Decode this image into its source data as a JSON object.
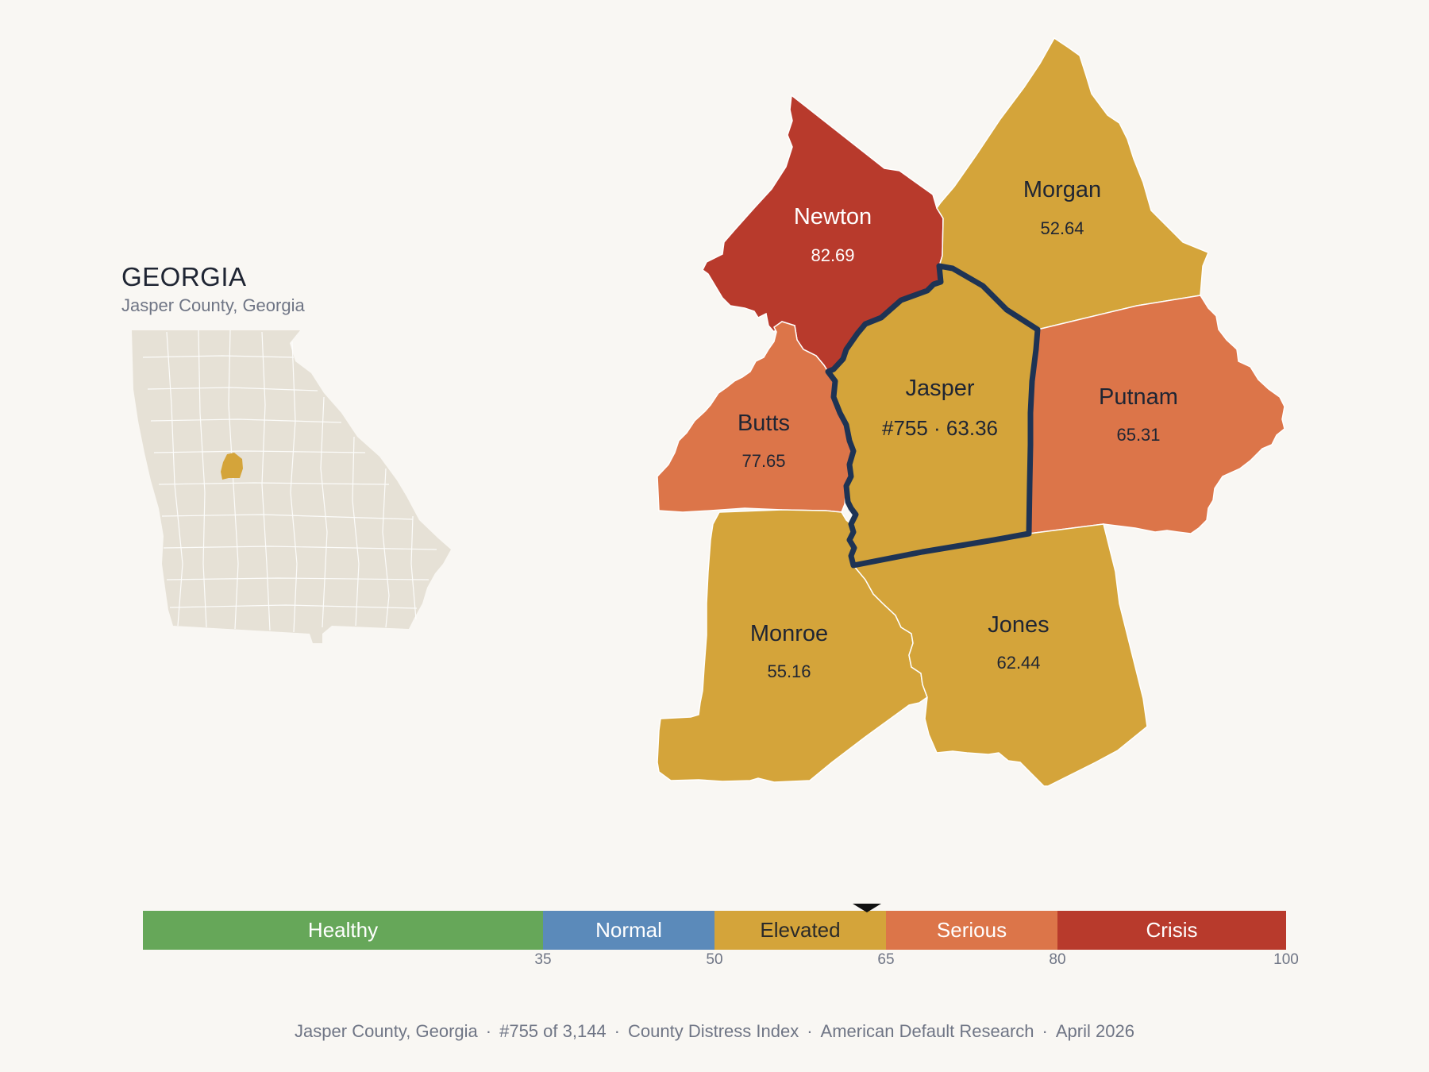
{
  "inset": {
    "state_title": "GEORGIA",
    "subtitle": "Jasper County, Georgia",
    "state_fill": "#e6e1d6",
    "highlight_fill": "#d4a43a"
  },
  "map": {
    "counties": [
      {
        "id": "newton",
        "name": "Newton",
        "value": "82.69",
        "category": "Crisis",
        "color": "#b83a2c"
      },
      {
        "id": "morgan",
        "name": "Morgan",
        "value": "52.64",
        "category": "Elevated",
        "color": "#d4a43a"
      },
      {
        "id": "butts",
        "name": "Butts",
        "value": "77.65",
        "category": "Serious",
        "color": "#dc7549"
      },
      {
        "id": "jasper",
        "name": "Jasper",
        "value": "#755 · 63.36",
        "category": "Elevated",
        "color": "#d4a43a",
        "selected": true
      },
      {
        "id": "putnam",
        "name": "Putnam",
        "value": "65.31",
        "category": "Serious",
        "color": "#dc7549"
      },
      {
        "id": "monroe",
        "name": "Monroe",
        "value": "55.16",
        "category": "Elevated",
        "color": "#d4a43a"
      },
      {
        "id": "jones",
        "name": "Jones",
        "value": "62.44",
        "category": "Elevated",
        "color": "#d4a43a"
      }
    ],
    "selected_outline_color": "#1e3354"
  },
  "scale": {
    "segments": [
      {
        "label": "Healthy",
        "min": 0,
        "max": 35,
        "color": "#66a759"
      },
      {
        "label": "Normal",
        "min": 35,
        "max": 50,
        "color": "#5b8aba"
      },
      {
        "label": "Elevated",
        "min": 50,
        "max": 65,
        "color": "#d4a43a"
      },
      {
        "label": "Serious",
        "min": 65,
        "max": 80,
        "color": "#dc7549"
      },
      {
        "label": "Crisis",
        "min": 80,
        "max": 100,
        "color": "#b83a2c"
      }
    ],
    "ticks": [
      "35",
      "50",
      "65",
      "80",
      "100"
    ],
    "marker_value": 63.36
  },
  "footer": {
    "county": "Jasper County, Georgia",
    "rank": "#755 of 3,144",
    "index": "County Distress Index",
    "source": "American Default Research",
    "date": "April 2026"
  }
}
